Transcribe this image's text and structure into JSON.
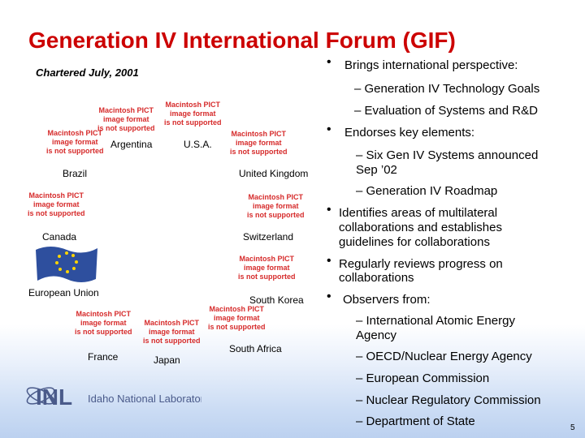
{
  "title": "Generation IV International Forum (GIF)",
  "chartered": "Chartered July, 2001",
  "pict_placeholder": [
    "Macintosh PICT",
    "image format",
    "is not supported"
  ],
  "countries": {
    "argentina": "Argentina",
    "usa": "U.S.A.",
    "brazil": "Brazil",
    "uk": "United Kingdom",
    "canada": "Canada",
    "switzerland": "Switzerland",
    "eu": "European Union",
    "south_korea": "South Korea",
    "france": "France",
    "japan": "Japan",
    "south_africa": "South Africa"
  },
  "bullets": {
    "b1": "Brings international perspective:",
    "b1_sub1": "– Generation IV Technology Goals",
    "b1_sub2": "– Evaluation of Systems and R&D",
    "b2": "Endorses key elements:",
    "b2_sub1_line1": "– Six Gen IV Systems announced",
    "b2_sub1_line2": "Sep ’02",
    "b2_sub2": "– Generation IV Roadmap",
    "b3_line1": "Identifies areas of multilateral",
    "b3_line2": "collaborations and establishes",
    "b3_line3": "guidelines for collaborations",
    "b4_line1": "Regularly reviews progress on",
    "b4_line2": "collaborations",
    "b5": "Observers from:",
    "b5_sub1_line1": "– International Atomic Energy",
    "b5_sub1_line2": "Agency",
    "b5_sub2": "– OECD/Nuclear Energy Agency",
    "b5_sub3": "– European Commission",
    "b5_sub4": "– Nuclear Regulatory Commission",
    "b5_sub5": "– Department of State"
  },
  "logo": {
    "acronym": "INL",
    "name": "Idaho National Laboratory"
  },
  "page_number": "5",
  "colors": {
    "title": "#cc0000",
    "placeholder": "#d62b2b",
    "logo": "#4a5a8a",
    "eu_flag": "#2e4f9e",
    "eu_stars": "#ffd500"
  }
}
